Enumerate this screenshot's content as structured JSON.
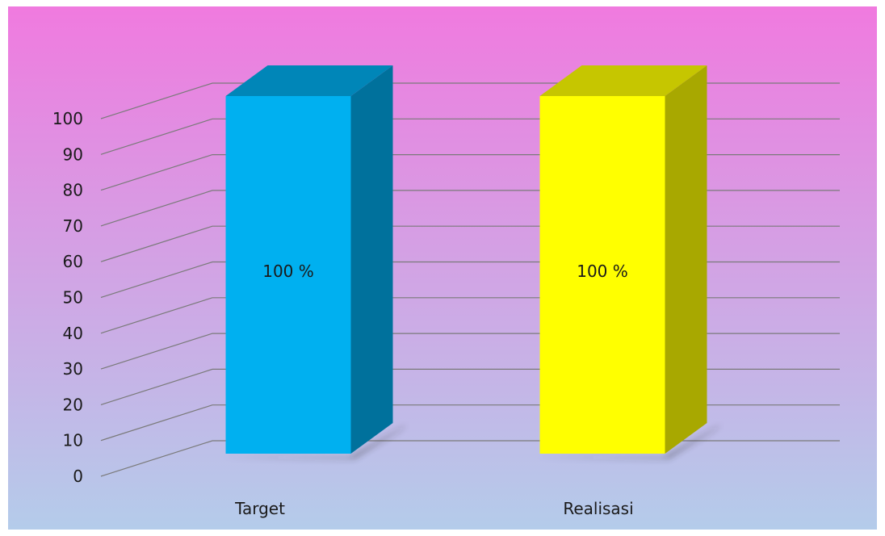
{
  "chart_data": {
    "type": "bar",
    "style": "3d-column",
    "categories": [
      "Target",
      "Realisasi"
    ],
    "values": [
      100,
      100
    ],
    "data_labels": [
      "100 %",
      "100 %"
    ],
    "yticks": [
      "0",
      "10",
      "20",
      "30",
      "40",
      "50",
      "60",
      "70",
      "80",
      "90",
      "100"
    ],
    "ylim": [
      0,
      100
    ],
    "grid": true,
    "legend": "none",
    "colors": {
      "bars": [
        {
          "front": "#00B0F0",
          "top": "#0086B8",
          "side": "#00719C"
        },
        {
          "front": "#FFFF00",
          "top": "#C6C600",
          "side": "#A8A800"
        }
      ],
      "background_top": "#F07ADF",
      "background_bottom": "#B4CCEA",
      "gridline": "#7A7A7A"
    }
  }
}
